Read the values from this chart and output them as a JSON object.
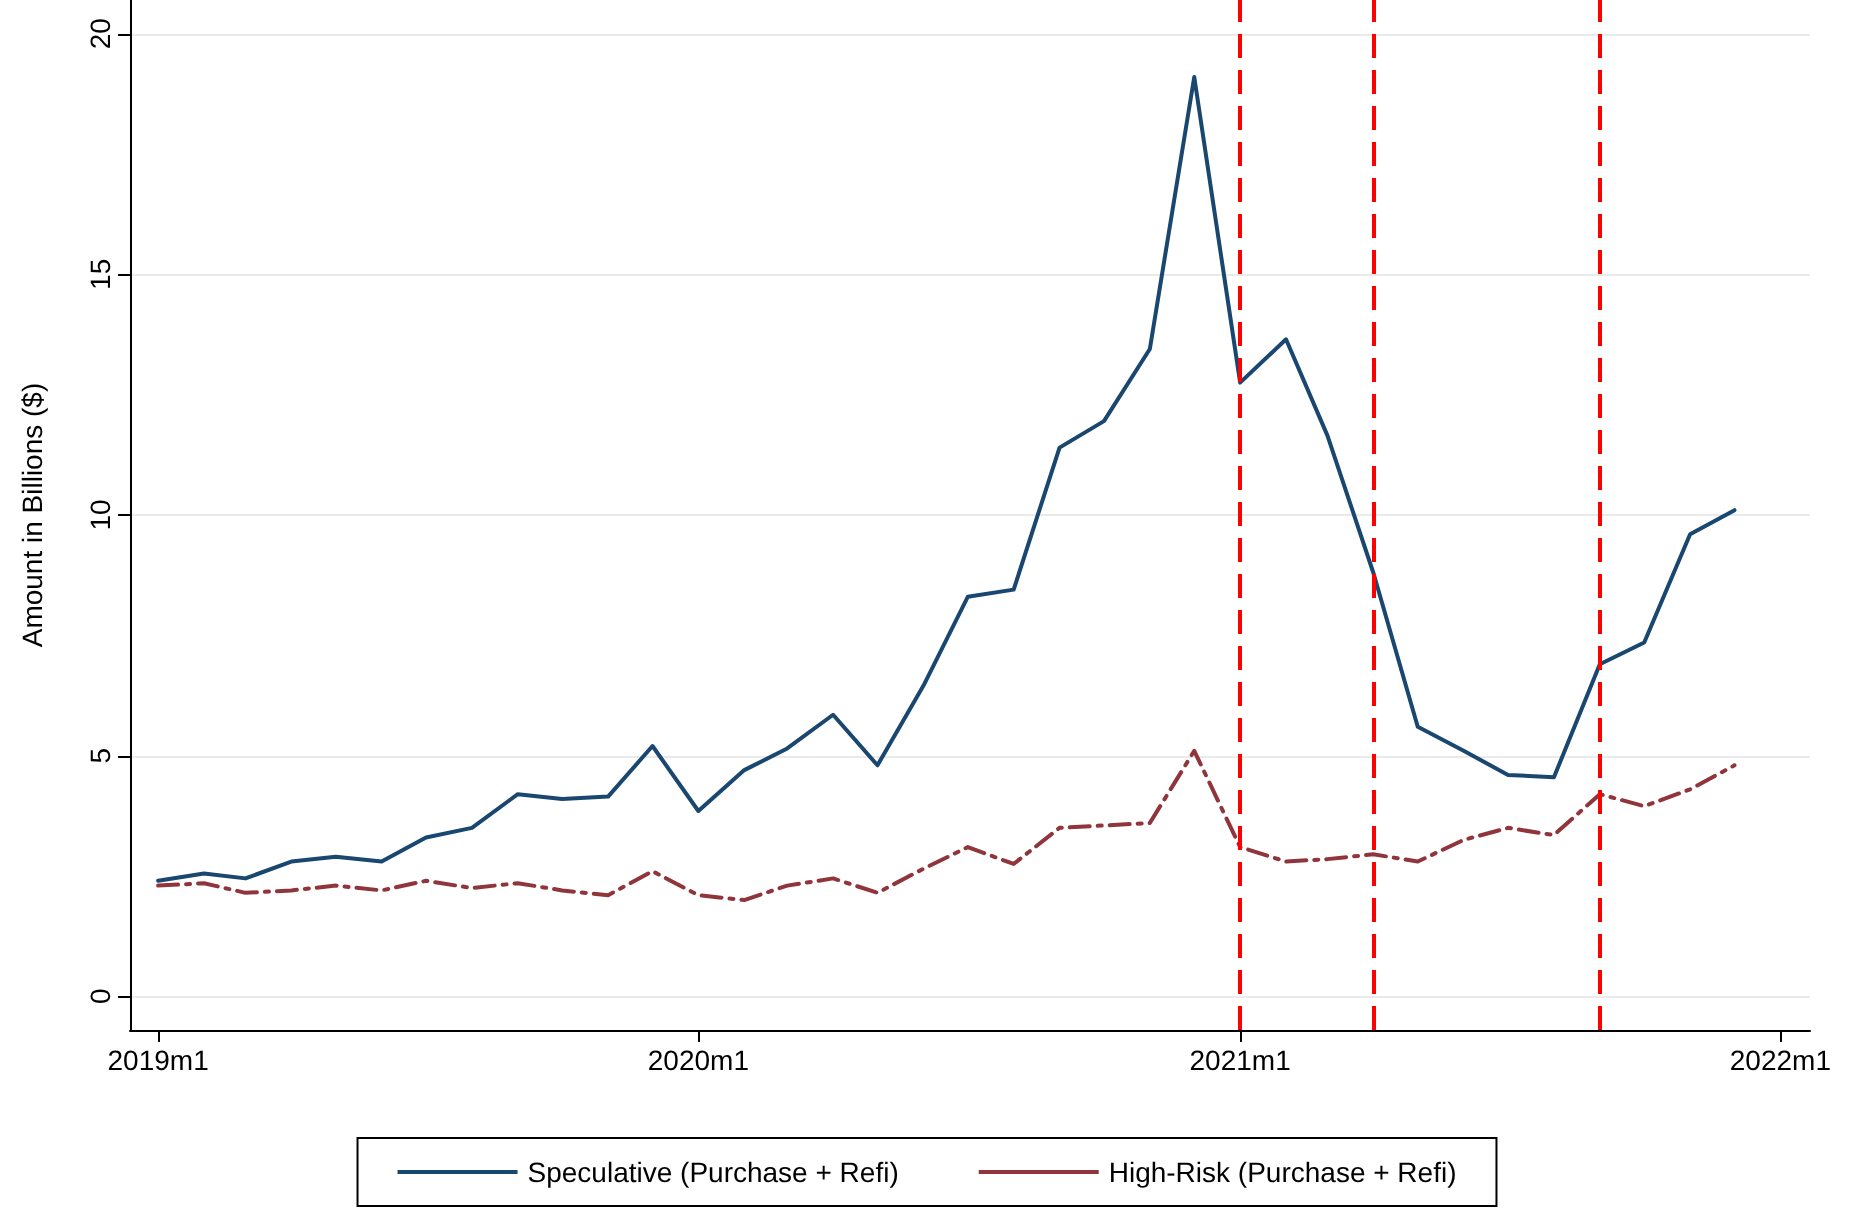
{
  "chart_data": {
    "type": "line",
    "ylabel": "Amount in Billions ($)",
    "x": [
      "2019-01",
      "2019-02",
      "2019-03",
      "2019-04",
      "2019-05",
      "2019-06",
      "2019-07",
      "2019-08",
      "2019-09",
      "2019-10",
      "2019-11",
      "2019-12",
      "2020-01",
      "2020-02",
      "2020-03",
      "2020-04",
      "2020-05",
      "2020-06",
      "2020-07",
      "2020-08",
      "2020-09",
      "2020-10",
      "2020-11",
      "2020-12",
      "2021-01",
      "2021-02",
      "2021-03",
      "2021-04",
      "2021-05",
      "2021-06",
      "2021-07",
      "2021-08",
      "2021-09",
      "2021-10",
      "2021-11",
      "2021-12"
    ],
    "series": [
      {
        "name": "Speculative (Purchase + Refi)",
        "color": "#1a476f",
        "line_style": "solid",
        "values": [
          2.4,
          2.55,
          2.45,
          2.8,
          2.9,
          2.8,
          3.3,
          3.5,
          4.2,
          4.1,
          4.15,
          5.2,
          3.85,
          4.7,
          5.15,
          5.85,
          4.8,
          6.45,
          8.3,
          8.45,
          11.4,
          11.95,
          13.45,
          19.1,
          12.75,
          13.65,
          11.65,
          8.8,
          5.6,
          5.1,
          4.6,
          4.55,
          6.9,
          7.35,
          9.6,
          10.1
        ]
      },
      {
        "name": "High-Risk (Purchase + Refi)",
        "color": "#90353b",
        "line_style": "dashed",
        "values": [
          2.3,
          2.35,
          2.15,
          2.2,
          2.3,
          2.2,
          2.4,
          2.25,
          2.35,
          2.2,
          2.1,
          2.6,
          2.1,
          2.0,
          2.3,
          2.45,
          2.15,
          2.65,
          3.1,
          2.75,
          3.5,
          3.55,
          3.6,
          5.1,
          3.1,
          2.8,
          2.85,
          2.95,
          2.8,
          3.25,
          3.5,
          3.35,
          4.2,
          3.95,
          4.3,
          4.8
        ]
      }
    ],
    "xlim": [
      "2018-12-13",
      "2022-01-21"
    ],
    "xticks": [
      {
        "value": "2019-01",
        "label": "2019m1"
      },
      {
        "value": "2020-01",
        "label": "2020m1"
      },
      {
        "value": "2021-01",
        "label": "2021m1"
      },
      {
        "value": "2022-01",
        "label": "2022m1"
      }
    ],
    "ylim": [
      -0.7,
      20.7
    ],
    "yticks": [
      0,
      5,
      10,
      15,
      20
    ],
    "ref_lines": [
      {
        "axis": "x",
        "value": "2021-01",
        "color": "#ff0000",
        "line_style": "dashed"
      },
      {
        "axis": "x",
        "value": "2021-04",
        "color": "#ff0000",
        "line_style": "dashed"
      },
      {
        "axis": "x",
        "value": "2021-09",
        "color": "#ff0000",
        "line_style": "dashed"
      }
    ],
    "grid": "y",
    "legend": "bottom",
    "marker": "none"
  }
}
